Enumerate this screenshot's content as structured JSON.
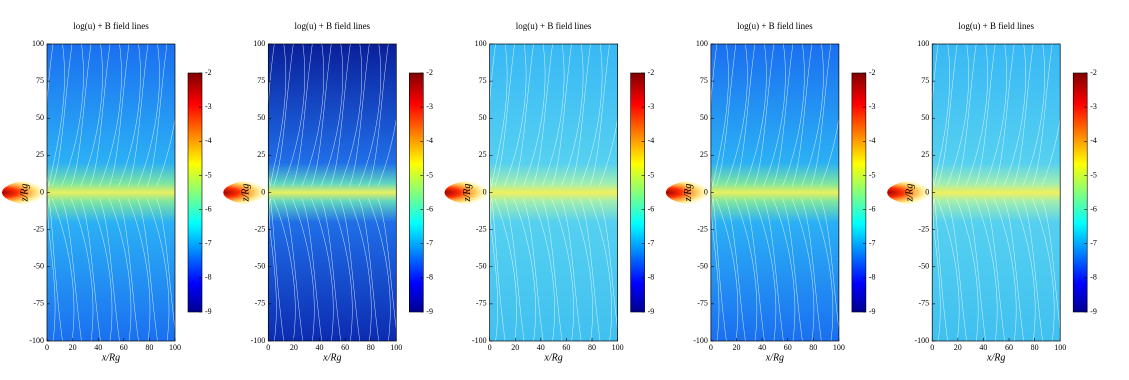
{
  "chart_data": [
    {
      "type": "heatmap",
      "title": "log(u) + B field lines",
      "xlabel": "x/Rg",
      "ylabel": "z/Rg",
      "xlim": [
        0,
        100
      ],
      "xticks": [
        0,
        20,
        40,
        60,
        80,
        100
      ],
      "ylim": [
        -100,
        100
      ],
      "yticks": [
        -100,
        -75,
        -50,
        -25,
        0,
        25,
        50,
        75,
        100
      ],
      "clim": [
        -9,
        -2
      ],
      "cticks": [
        -9,
        -8,
        -7,
        -6,
        -5,
        -4,
        -3,
        -2
      ]
    },
    {
      "type": "heatmap",
      "title": "log(u) + B field lines",
      "xlabel": "x/Rg",
      "ylabel": "z/Rg",
      "xlim": [
        0,
        100
      ],
      "xticks": [
        0,
        20,
        40,
        60,
        80,
        100
      ],
      "ylim": [
        -100,
        100
      ],
      "yticks": [
        -100,
        -75,
        -50,
        -25,
        0,
        25,
        50,
        75,
        100
      ],
      "clim": [
        -9,
        -2
      ],
      "cticks": [
        -9,
        -8,
        -7,
        -6,
        -5,
        -4,
        -3,
        -2
      ]
    },
    {
      "type": "heatmap",
      "title": "log(u) + B field lines",
      "xlabel": "x/Rg",
      "ylabel": "z/Rg",
      "xlim": [
        0,
        100
      ],
      "xticks": [
        0,
        20,
        40,
        60,
        80,
        100
      ],
      "ylim": [
        -100,
        100
      ],
      "yticks": [
        -100,
        -75,
        -50,
        -25,
        0,
        25,
        50,
        75,
        100
      ],
      "clim": [
        -9,
        -2
      ],
      "cticks": [
        -9,
        -8,
        -7,
        -6,
        -5,
        -4,
        -3,
        -2
      ]
    },
    {
      "type": "heatmap",
      "title": "log(u) + B field lines",
      "xlabel": "x/Rg",
      "ylabel": "z/Rg",
      "xlim": [
        0,
        100
      ],
      "xticks": [
        0,
        20,
        40,
        60,
        80,
        100
      ],
      "ylim": [
        -100,
        100
      ],
      "yticks": [
        -100,
        -75,
        -50,
        -25,
        0,
        25,
        50,
        75,
        100
      ],
      "clim": [
        -9,
        -2
      ],
      "cticks": [
        -9,
        -8,
        -7,
        -6,
        -5,
        -4,
        -3,
        -2
      ]
    },
    {
      "type": "heatmap",
      "title": "log(u) + B field lines",
      "xlabel": "x/Rg",
      "ylabel": "z/Rg",
      "xlim": [
        0,
        100
      ],
      "xticks": [
        0,
        20,
        40,
        60,
        80,
        100
      ],
      "ylim": [
        -100,
        100
      ],
      "yticks": [
        -100,
        -75,
        -50,
        -25,
        0,
        25,
        50,
        75,
        100
      ],
      "clim": [
        -9,
        -2
      ],
      "cticks": [
        -9,
        -8,
        -7,
        -6,
        -5,
        -4,
        -3,
        -2
      ]
    }
  ]
}
